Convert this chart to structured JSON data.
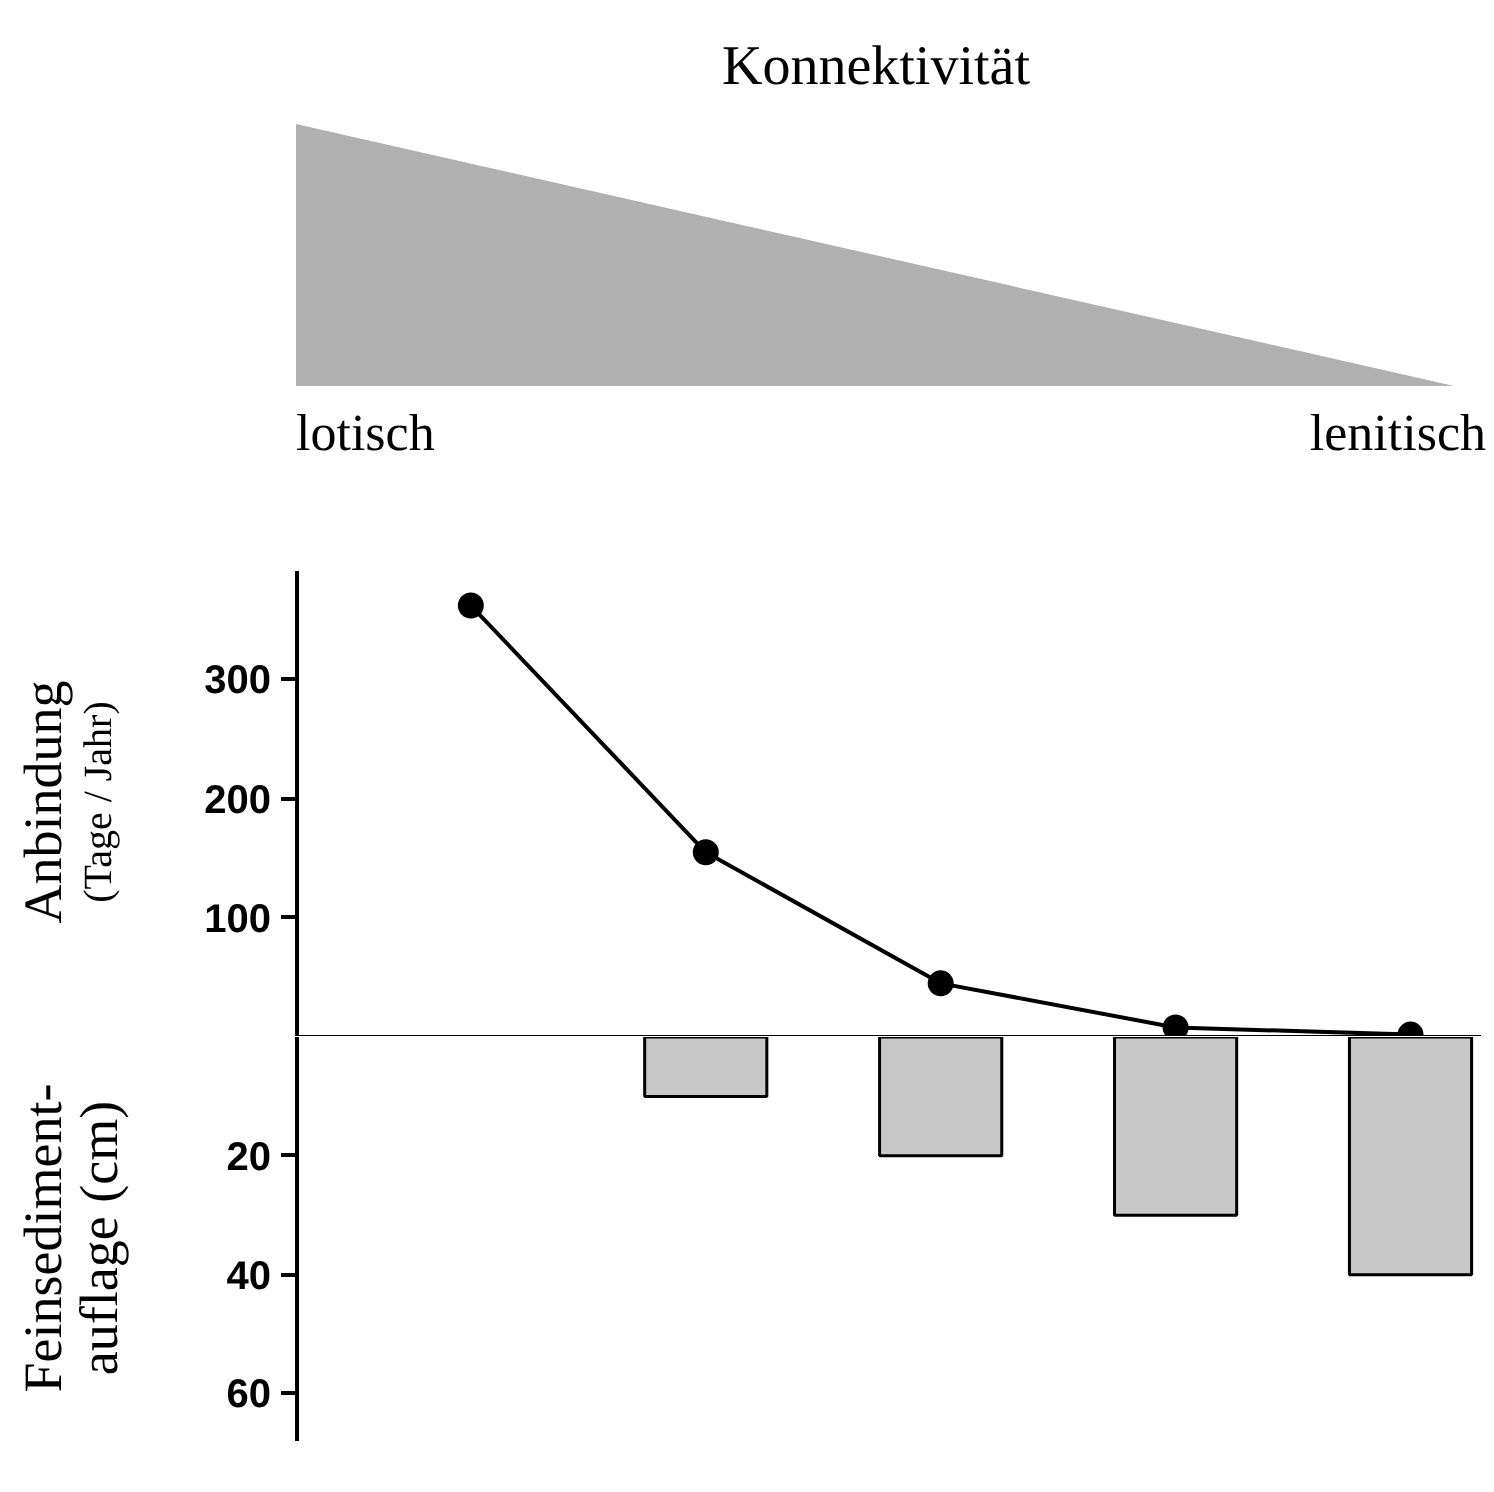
{
  "chart_data": [
    {
      "type": "line",
      "title": "Konnektivität",
      "annotations": [
        "lotisch",
        "lenitisch"
      ],
      "ylabel": "Anbindung\n(Tage / Jahr)",
      "categories": [
        null,
        null,
        null,
        null,
        null
      ],
      "values": [
        362,
        155,
        45,
        8,
        2
      ],
      "color": "#000000",
      "ylim": [
        0,
        391
      ],
      "yticks": [
        100,
        200,
        300
      ],
      "ref_lines": [
        {
          "axis": "y",
          "value": 0
        }
      ],
      "marker": "circle",
      "grid": false
    },
    {
      "type": "bar",
      "ylabel": "Feinsediment-\nauflage (cm)",
      "categories": [
        null,
        null,
        null,
        null,
        null
      ],
      "values": [
        null,
        10,
        20,
        30,
        40
      ],
      "color": "#c8c8c8",
      "ylim": [
        68,
        0
      ],
      "yticks": [
        20,
        40,
        60
      ],
      "grid": false
    }
  ]
}
